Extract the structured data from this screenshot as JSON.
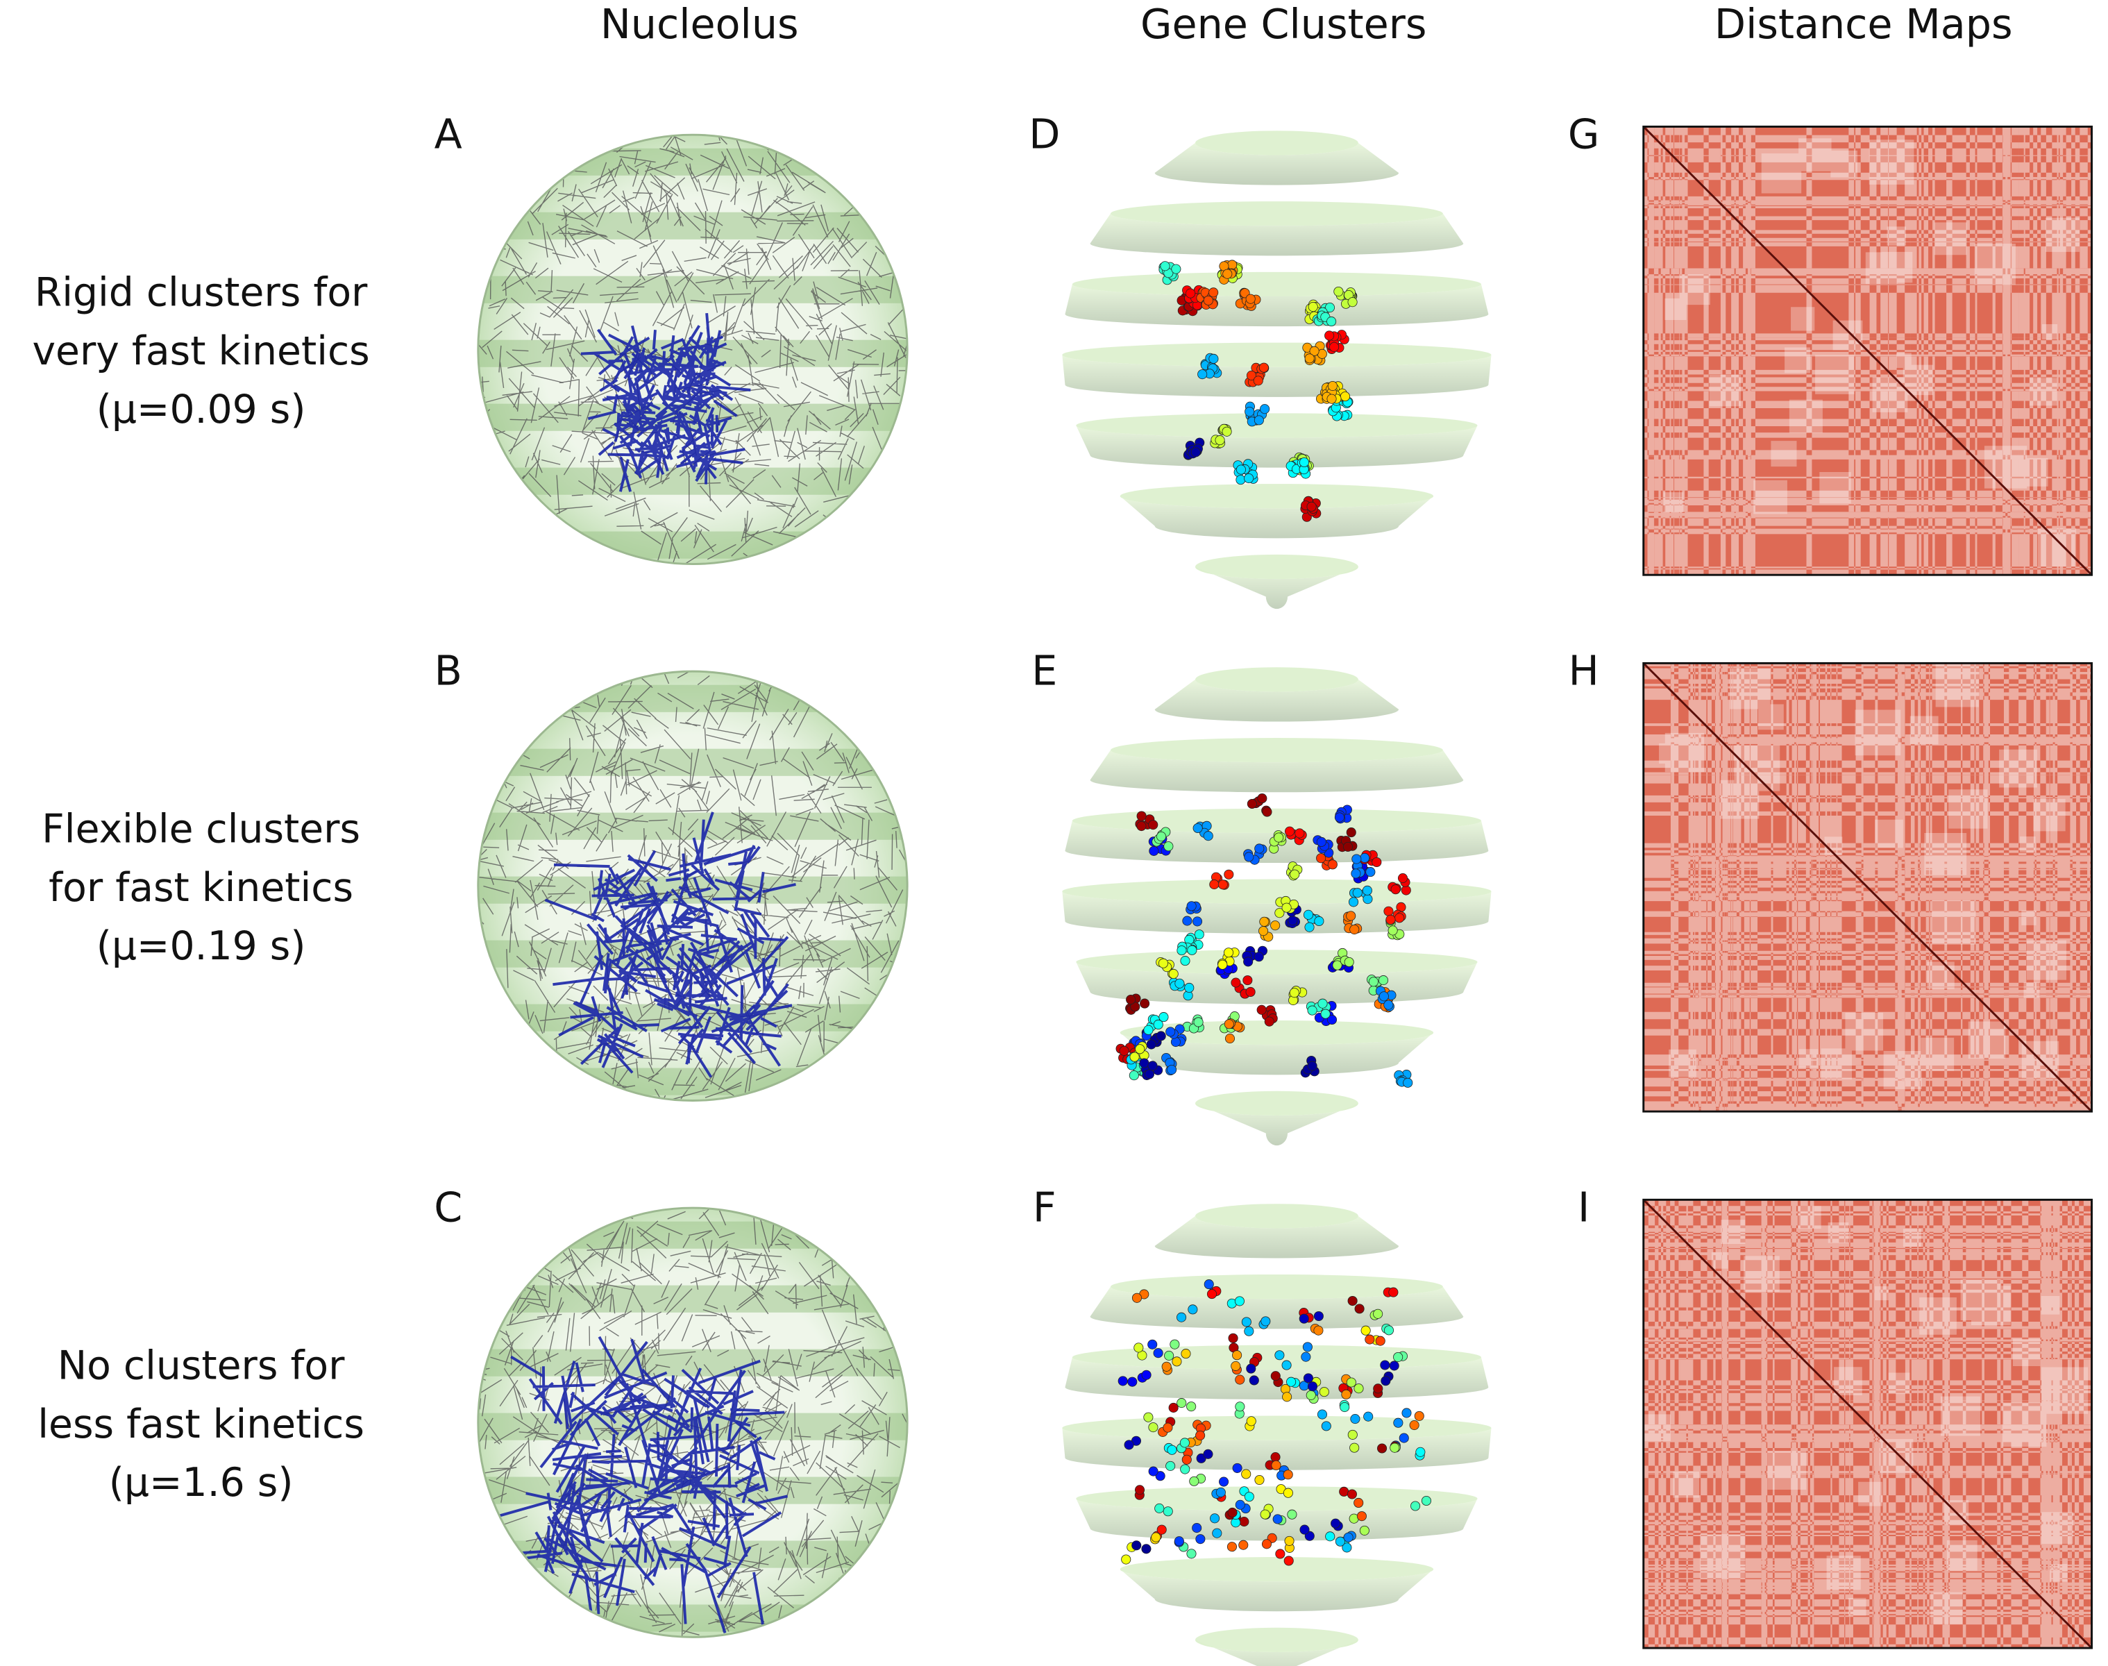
{
  "columns": [
    "Nucleolus",
    "Gene Clusters",
    "Distance Maps"
  ],
  "rows": [
    {
      "label": [
        "Rigid clusters for",
        "very fast kinetics",
        "(μ=0.09 s)"
      ],
      "panels": [
        "A",
        "D",
        "G"
      ]
    },
    {
      "label": [
        "Flexible clusters",
        "for fast kinetics",
        "(μ=0.19 s)"
      ],
      "panels": [
        "B",
        "E",
        "H"
      ]
    },
    {
      "label": [
        "No clusters for",
        "less fast kinetics",
        "(μ=1.6 s)"
      ],
      "panels": [
        "C",
        "F",
        "I"
      ]
    }
  ]
}
